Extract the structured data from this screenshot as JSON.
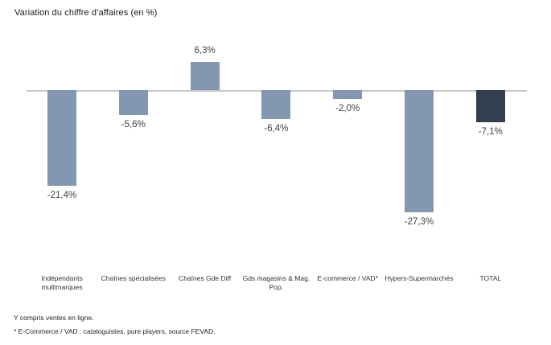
{
  "title": "Variation du chiffre d’affaires (en %)",
  "footnotes": [
    "Y compris ventes en ligne.",
    "* E-Commerce / VAD : cataloguistes, pure players, source FEVAD."
  ],
  "colors": {
    "bar": "#8497B0",
    "total_bar": "#333F50",
    "axis": "#C8C8C8",
    "value_text": "#404040",
    "category_text": "#333333"
  },
  "chart_data": {
    "type": "bar",
    "title": "Variation du chiffre d’affaires (en %)",
    "categories": [
      "Indépendants\nmultimarques",
      "Chaînes spécialisées",
      "Chaînes Gde Diff",
      "Gds magasins & Mag.\nPop.",
      "E-commerce / VAD*",
      "Hypers-Supermarchés",
      "TOTAL"
    ],
    "values": [
      -21.4,
      -5.6,
      6.3,
      -6.4,
      -2.0,
      -27.3,
      -7.1
    ],
    "value_labels": [
      "-21,4%",
      "-5,6%",
      "6,3%",
      "-6,4%",
      "-2,0%",
      "-27,3%",
      "-7,1%"
    ],
    "highlight_category": "TOTAL",
    "xlabel": "",
    "ylabel": "",
    "ylim": [
      -30,
      10
    ],
    "grid": false,
    "legend": false,
    "data_labels": true
  }
}
